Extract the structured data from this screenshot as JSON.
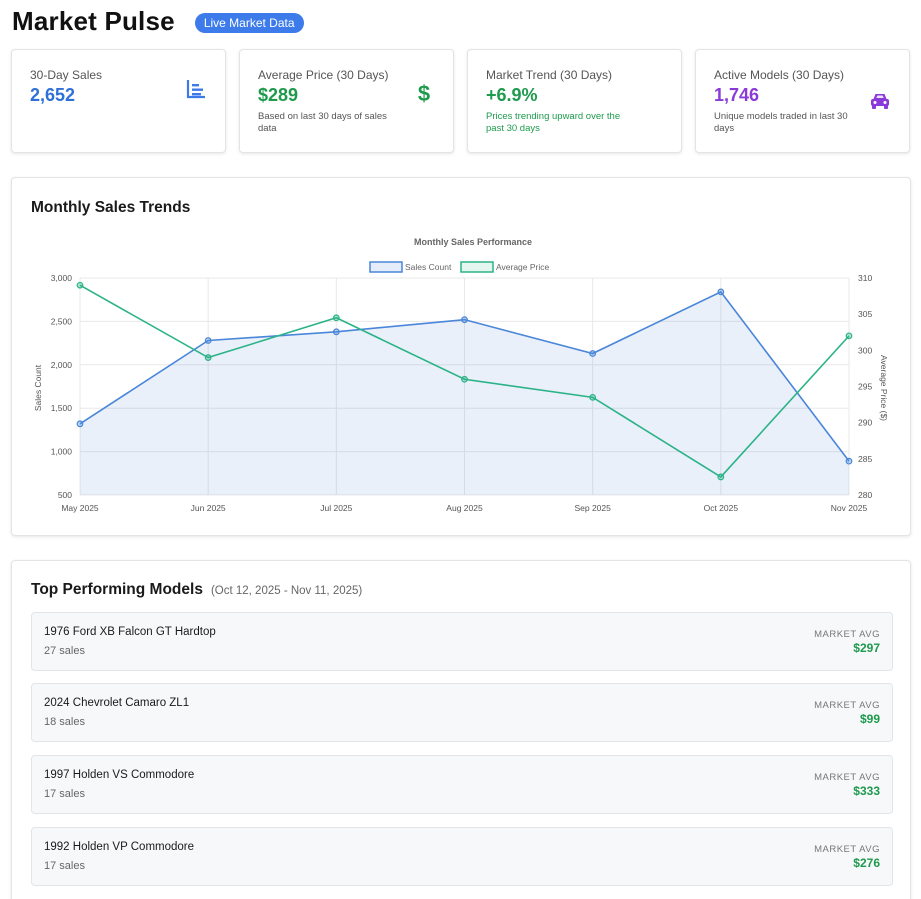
{
  "header": {
    "title": "Market Pulse",
    "badge": "Live Market Data"
  },
  "cards": [
    {
      "label": "30-Day Sales",
      "value": "2,652",
      "sub": "",
      "value_color": "#2f6fd8",
      "icon": "bar-chart-icon",
      "icon_color": "#3d7bea"
    },
    {
      "label": "Average Price (30 Days)",
      "value": "$289",
      "sub": "Based on last 30 days of sales data",
      "value_color": "#1e9a4d",
      "sub_color": "#555555",
      "icon": "dollar-icon",
      "icon_color": "#1e9a4d"
    },
    {
      "label": "Market Trend (30 Days)",
      "value": "+6.9%",
      "sub": "Prices trending upward over the past 30 days",
      "value_color": "#1e9a4d",
      "sub_color": "#1e9a4d",
      "icon": "",
      "icon_color": ""
    },
    {
      "label": "Active Models (30 Days)",
      "value": "1,746",
      "sub": "Unique models traded in last 30 days",
      "value_color": "#8a3ad8",
      "sub_color": "#555555",
      "icon": "car-icon",
      "icon_color": "#8a3ad8"
    }
  ],
  "trends": {
    "title": "Monthly Sales Trends"
  },
  "chart_data": {
    "type": "line",
    "title": "Monthly Sales Performance",
    "categories": [
      "May 2025",
      "Jun 2025",
      "Jul 2025",
      "Aug 2025",
      "Sep 2025",
      "Oct 2025",
      "Nov 2025"
    ],
    "series": [
      {
        "name": "Sales Count",
        "axis": "left",
        "values": [
          1320,
          2280,
          2380,
          2520,
          2130,
          2840,
          890
        ],
        "color": "#4a86d9",
        "fill": "rgba(74,134,217,0.12)"
      },
      {
        "name": "Average Price",
        "axis": "right",
        "values": [
          309,
          299,
          304.5,
          296,
          293.5,
          282.5,
          302
        ],
        "color": "#2bb387"
      }
    ],
    "ylabel": "Sales Count",
    "y2label": "Average Price ($)",
    "ylim": [
      500,
      3000
    ],
    "yticks": [
      "3,000",
      "2,500",
      "2,000",
      "1,500",
      "1,000",
      "500"
    ],
    "y2lim": [
      280,
      310
    ],
    "y2ticks": [
      "310",
      "305",
      "300",
      "295",
      "290",
      "285",
      "280"
    ],
    "legend": "top-center",
    "grid": true
  },
  "top_models": {
    "title": "Top Performing Models",
    "range": "(Oct 12, 2025 - Nov 11, 2025)",
    "items": [
      {
        "name": "1976 Ford XB Falcon GT Hardtop",
        "sales": "27 sales",
        "market_label": "MARKET AVG",
        "market_value": "$297"
      },
      {
        "name": "2024 Chevrolet Camaro ZL1",
        "sales": "18 sales",
        "market_label": "MARKET AVG",
        "market_value": "$99"
      },
      {
        "name": "1997 Holden VS Commodore",
        "sales": "17 sales",
        "market_label": "MARKET AVG",
        "market_value": "$333"
      },
      {
        "name": "1992 Holden VP Commodore",
        "sales": "17 sales",
        "market_label": "MARKET AVG",
        "market_value": "$276"
      }
    ]
  }
}
